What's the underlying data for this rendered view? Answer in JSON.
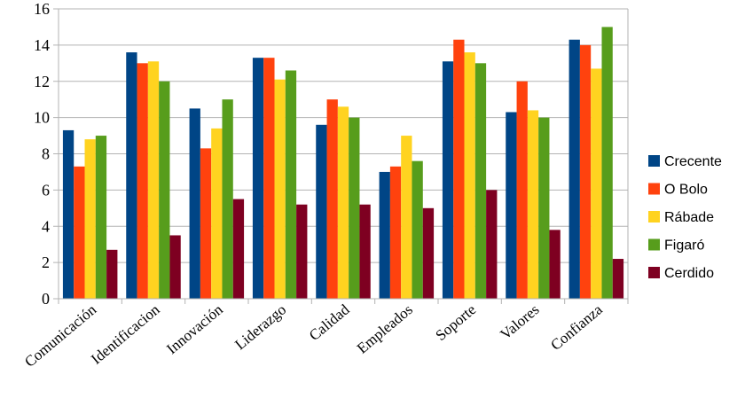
{
  "chart_data": {
    "type": "bar",
    "title": "",
    "xlabel": "",
    "ylabel": "",
    "ylim": [
      0,
      16
    ],
    "yticks": [
      0,
      2,
      4,
      6,
      8,
      10,
      12,
      14,
      16
    ],
    "grid": true,
    "legend_position": "right",
    "categories": [
      "Comunicación",
      "Identificacion",
      "Innovación",
      "Liderazgo",
      "Calidad",
      "Empleados",
      "Soporte",
      "Valores",
      "Confianza"
    ],
    "series": [
      {
        "name": "Crecente",
        "color": "#004586",
        "values": [
          9.3,
          13.6,
          10.5,
          13.3,
          9.6,
          7.0,
          13.1,
          10.3,
          14.3
        ]
      },
      {
        "name": "O Bolo",
        "color": "#ff420e",
        "values": [
          7.3,
          13.0,
          8.3,
          13.3,
          11.0,
          7.3,
          14.3,
          12.0,
          14.0
        ]
      },
      {
        "name": "Rábade",
        "color": "#ffd320",
        "values": [
          8.8,
          13.1,
          9.4,
          12.1,
          10.6,
          9.0,
          13.6,
          10.4,
          12.7
        ]
      },
      {
        "name": "Figaró",
        "color": "#579d1c",
        "values": [
          9.0,
          12.0,
          11.0,
          12.6,
          10.0,
          7.6,
          13.0,
          10.0,
          15.0
        ]
      },
      {
        "name": "Cerdido",
        "color": "#7e0021",
        "values": [
          2.7,
          3.5,
          5.5,
          5.2,
          5.2,
          5.0,
          6.0,
          3.8,
          2.2
        ]
      }
    ]
  }
}
